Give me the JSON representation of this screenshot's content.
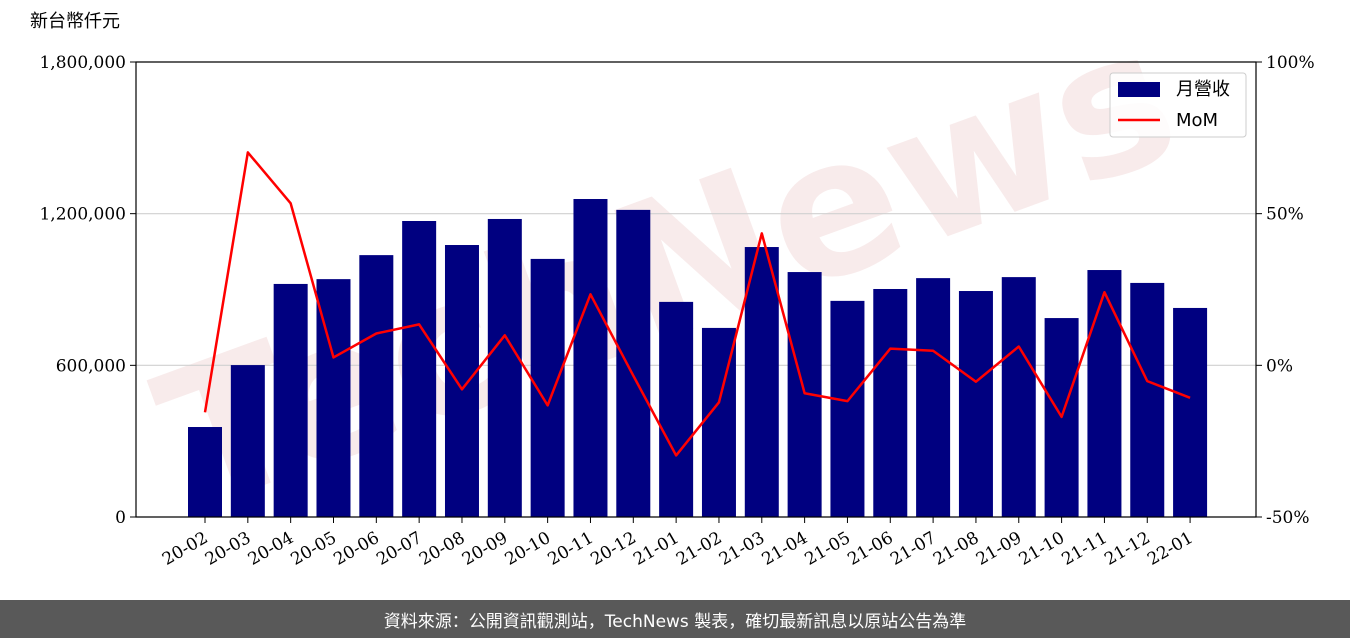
{
  "chart_data": {
    "type": "bar",
    "y_label": "新台幣仟元",
    "watermark": "TechNews",
    "categories": [
      "20-02",
      "20-03",
      "20-04",
      "20-05",
      "20-06",
      "20-07",
      "20-08",
      "20-09",
      "20-10",
      "20-11",
      "20-12",
      "21-01",
      "21-02",
      "21-03",
      "21-04",
      "21-05",
      "21-06",
      "21-07",
      "21-08",
      "21-09",
      "21-10",
      "21-11",
      "21-12",
      "22-01"
    ],
    "series": [
      {
        "name": "月營收",
        "type": "bar",
        "color": "#000080",
        "values": [
          356000,
          601000,
          922000,
          941000,
          1036000,
          1171000,
          1076000,
          1179000,
          1021000,
          1258000,
          1215000,
          851000,
          748000,
          1068000,
          969000,
          855000,
          902000,
          945000,
          894000,
          949000,
          787000,
          977000,
          926000,
          827000
        ]
      },
      {
        "name": "MoM",
        "type": "line",
        "color": "#ff0000",
        "axis": "y2",
        "values": [
          -15.5,
          70.2,
          53.4,
          2.6,
          10.5,
          13.5,
          -7.9,
          9.9,
          -13.2,
          23.4,
          -3.4,
          -29.7,
          -12.2,
          43.5,
          -9.2,
          -11.8,
          5.5,
          4.8,
          -5.4,
          6.2,
          -17.0,
          24.1,
          -5.2,
          -10.7
        ]
      }
    ],
    "ylim": [
      0,
      1800000
    ],
    "yticks": [
      {
        "value": 0,
        "label": "0"
      },
      {
        "value": 600000,
        "label": "600,000"
      },
      {
        "value": 1200000,
        "label": "1,200,000"
      },
      {
        "value": 1800000,
        "label": "1,800,000"
      }
    ],
    "y2lim": [
      -50,
      100
    ],
    "y2ticks": [
      {
        "value": -50,
        "label": "-50%"
      },
      {
        "value": 0,
        "label": "0%"
      },
      {
        "value": 50,
        "label": "50%"
      },
      {
        "value": 100,
        "label": "100%"
      }
    ],
    "grid": true,
    "legend": "upper right",
    "footer": "資料來源：公開資訊觀測站，TechNews 製表，確切最新訊息以原站公告為準"
  }
}
